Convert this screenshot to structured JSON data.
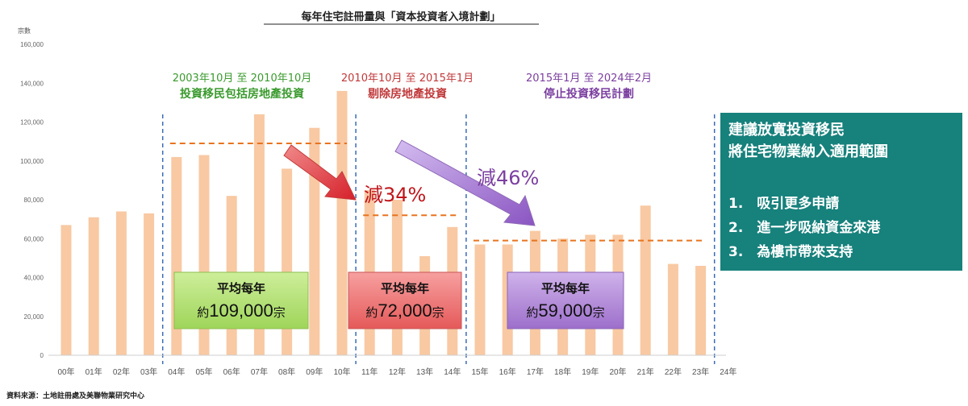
{
  "chart_data": {
    "type": "bar",
    "title": "每年住宅註冊量與「資本投資者入境計劃」",
    "ylabel": "宗數",
    "ylim": [
      0,
      160000
    ],
    "y_ticks": [
      "0",
      "20,000",
      "40,000",
      "60,000",
      "80,000",
      "100,000",
      "120,000",
      "140,000",
      "160,000"
    ],
    "categories": [
      "00年",
      "01年",
      "02年",
      "03年",
      "04年",
      "05年",
      "06年",
      "07年",
      "08年",
      "09年",
      "10年",
      "11年",
      "12年",
      "13年",
      "14年",
      "15年",
      "16年",
      "17年",
      "18年",
      "19年",
      "20年",
      "21年",
      "22年",
      "23年",
      "24年"
    ],
    "values": [
      67000,
      71000,
      74000,
      73000,
      102000,
      103000,
      82000,
      124000,
      96000,
      117000,
      136000,
      85000,
      80000,
      51000,
      66000,
      57000,
      57000,
      64000,
      60000,
      62000,
      62000,
      77000,
      47000,
      46000,
      null
    ],
    "bar_color": "#f8c9a3",
    "period_dividers_after": [
      "03年",
      "10年",
      "14年",
      "23年"
    ],
    "periods": [
      {
        "date": "2003年10月 至 2010年10月",
        "desc": "投資移民包括房地產投資",
        "color": "#3a9a2e",
        "avg_label": "平均每年",
        "avg_value_text": "約109,000宗",
        "avg_num": "109,000",
        "avg_prefix": "約",
        "avg_suffix": "宗",
        "average": 109000,
        "box_color": "#b9e27d"
      },
      {
        "date": "2010年10月 至 2015年1月",
        "desc": "剔除房地產投資",
        "color": "#c0393b",
        "avg_label": "平均每年",
        "avg_prefix": "約",
        "avg_num": "72,000",
        "avg_suffix": "宗",
        "average": 72000,
        "box_color": "#f07b7b"
      },
      {
        "date": "2015年1月 至 2024年2月",
        "desc": "停止投資移民計劃",
        "color": "#7b3fa0",
        "avg_label": "平均每年",
        "avg_prefix": "約",
        "avg_num": "59,000",
        "avg_suffix": "宗",
        "average": 59000,
        "box_color": "#b48bd6"
      }
    ],
    "reductions": [
      {
        "text": "減34%",
        "color": "#c0161b"
      },
      {
        "text": "減46%",
        "color": "#7b3fa0"
      }
    ],
    "source": "資料來源：土地註冊處及美聯物業研究中心"
  },
  "suggestion": {
    "title_line1": "建議放寬投資移民",
    "title_line2": "將住宅物業納入適用範圍",
    "items": [
      "1.　吸引更多申請",
      "2.　進一步吸納資金來港",
      "3.　為樓市帶來支持"
    ],
    "bg_color": "#17817c"
  }
}
